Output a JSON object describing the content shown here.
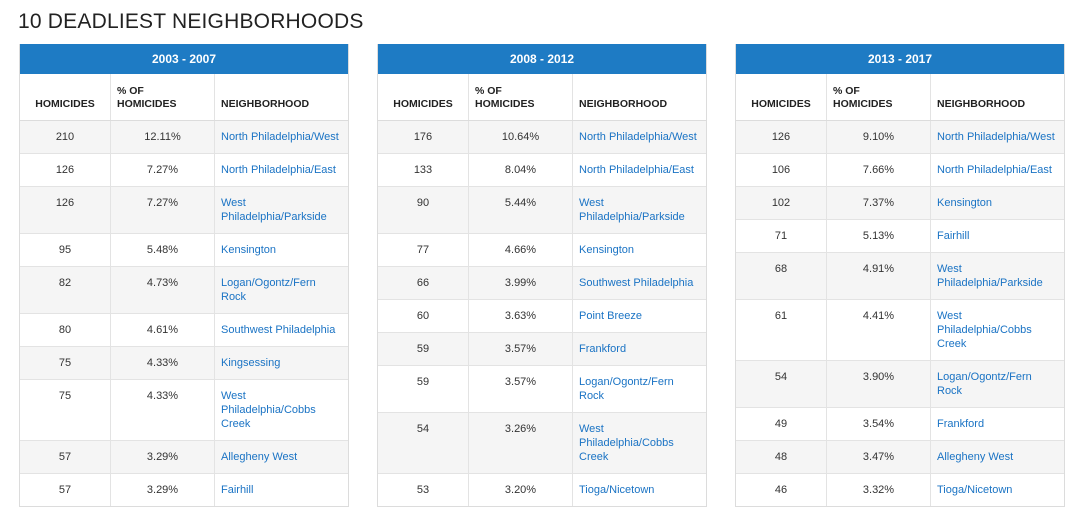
{
  "page_title": "10 DEADLIEST NEIGHBORHOODS",
  "columns": {
    "homicides": "HOMICIDES",
    "pct_line1": "% OF",
    "pct_line2": "HOMICIDES",
    "neighborhood": "NEIGHBORHOOD"
  },
  "colors": {
    "header_bg": "#1e7bc4",
    "link": "#1a73c4",
    "stripe": "#f5f5f5"
  },
  "tables": [
    {
      "period": "2003 - 2007",
      "rows": [
        {
          "homicides": "210",
          "pct": "12.11%",
          "neighborhood": "North Philadelphia/West"
        },
        {
          "homicides": "126",
          "pct": "7.27%",
          "neighborhood": "North Philadelphia/East"
        },
        {
          "homicides": "126",
          "pct": "7.27%",
          "neighborhood": "West Philadelphia/Parkside"
        },
        {
          "homicides": "95",
          "pct": "5.48%",
          "neighborhood": "Kensington"
        },
        {
          "homicides": "82",
          "pct": "4.73%",
          "neighborhood": "Logan/Ogontz/Fern Rock"
        },
        {
          "homicides": "80",
          "pct": "4.61%",
          "neighborhood": "Southwest Philadelphia"
        },
        {
          "homicides": "75",
          "pct": "4.33%",
          "neighborhood": "Kingsessing"
        },
        {
          "homicides": "75",
          "pct": "4.33%",
          "neighborhood": "West Philadelphia/Cobbs Creek"
        },
        {
          "homicides": "57",
          "pct": "3.29%",
          "neighborhood": "Allegheny West"
        },
        {
          "homicides": "57",
          "pct": "3.29%",
          "neighborhood": "Fairhill"
        }
      ]
    },
    {
      "period": "2008 - 2012",
      "rows": [
        {
          "homicides": "176",
          "pct": "10.64%",
          "neighborhood": "North Philadelphia/West"
        },
        {
          "homicides": "133",
          "pct": "8.04%",
          "neighborhood": "North Philadelphia/East"
        },
        {
          "homicides": "90",
          "pct": "5.44%",
          "neighborhood": "West Philadelphia/Parkside"
        },
        {
          "homicides": "77",
          "pct": "4.66%",
          "neighborhood": "Kensington"
        },
        {
          "homicides": "66",
          "pct": "3.99%",
          "neighborhood": "Southwest Philadelphia"
        },
        {
          "homicides": "60",
          "pct": "3.63%",
          "neighborhood": "Point Breeze"
        },
        {
          "homicides": "59",
          "pct": "3.57%",
          "neighborhood": "Frankford"
        },
        {
          "homicides": "59",
          "pct": "3.57%",
          "neighborhood": "Logan/Ogontz/Fern Rock"
        },
        {
          "homicides": "54",
          "pct": "3.26%",
          "neighborhood": "West Philadelphia/Cobbs Creek"
        },
        {
          "homicides": "53",
          "pct": "3.20%",
          "neighborhood": "Tioga/Nicetown"
        }
      ]
    },
    {
      "period": "2013 - 2017",
      "rows": [
        {
          "homicides": "126",
          "pct": "9.10%",
          "neighborhood": "North Philadelphia/West"
        },
        {
          "homicides": "106",
          "pct": "7.66%",
          "neighborhood": "North Philadelphia/East"
        },
        {
          "homicides": "102",
          "pct": "7.37%",
          "neighborhood": "Kensington"
        },
        {
          "homicides": "71",
          "pct": "5.13%",
          "neighborhood": "Fairhill"
        },
        {
          "homicides": "68",
          "pct": "4.91%",
          "neighborhood": "West Philadelphia/Parkside"
        },
        {
          "homicides": "61",
          "pct": "4.41%",
          "neighborhood": "West Philadelphia/Cobbs Creek"
        },
        {
          "homicides": "54",
          "pct": "3.90%",
          "neighborhood": "Logan/Ogontz/Fern Rock"
        },
        {
          "homicides": "49",
          "pct": "3.54%",
          "neighborhood": "Frankford"
        },
        {
          "homicides": "48",
          "pct": "3.47%",
          "neighborhood": "Allegheny West"
        },
        {
          "homicides": "46",
          "pct": "3.32%",
          "neighborhood": "Tioga/Nicetown"
        }
      ]
    }
  ]
}
